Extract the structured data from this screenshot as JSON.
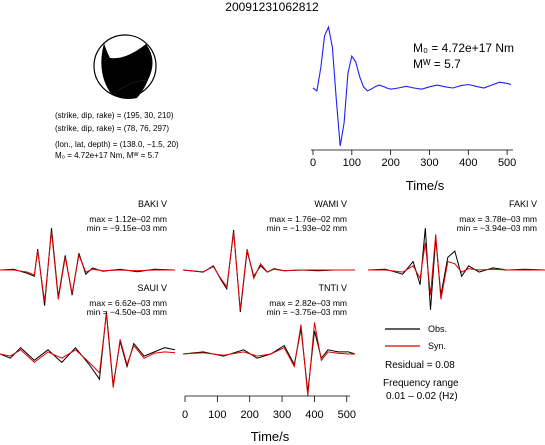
{
  "title": "20091231062812",
  "moment_tensor": {
    "line1": "(strike, dip, rake) = (195, 30, 210)",
    "line2": "(strike, dip, rake) = (78, 76, 297)",
    "line3": "(lon., lat, depth) = (138.0, −1.5, 20)",
    "line4": "M₀ = 4.72e+17 Nm, Mᵂ = 5.7",
    "stf_m0_label": "M₀ = 4.72e+17 Nm",
    "stf_mw_label": "Mᵂ = 5.7"
  },
  "legend": {
    "obs_label": "Obs.",
    "syn_label": "Syn.",
    "residual": "Residual = 0.08",
    "freq_title": "Frequency range",
    "freq_value": "0.01 – 0.02 (Hz)",
    "obs_color": "#000000",
    "syn_color": "#e00000"
  },
  "chart_data": [
    {
      "type": "line",
      "name": "source-time-function",
      "xlabel": "Time/s",
      "ylabel": "",
      "xlim": [
        0,
        510
      ],
      "xticks": [
        0,
        100,
        200,
        300,
        400,
        500
      ],
      "color": "#1f1fff",
      "x": [
        0,
        10,
        20,
        30,
        40,
        50,
        60,
        70,
        80,
        90,
        100,
        110,
        120,
        130,
        140,
        150,
        160,
        170,
        180,
        190,
        200,
        220,
        240,
        260,
        280,
        300,
        320,
        340,
        360,
        380,
        400,
        420,
        440,
        460,
        480,
        500,
        510
      ],
      "y": [
        0.0,
        -0.05,
        0.35,
        0.9,
        1.05,
        0.7,
        -0.2,
        -1.0,
        -0.6,
        0.25,
        0.55,
        0.45,
        0.2,
        0.02,
        -0.05,
        -0.02,
        0.02,
        0.05,
        0.03,
        0.0,
        -0.02,
        0.0,
        0.03,
        0.0,
        -0.02,
        0.02,
        0.05,
        0.02,
        0.0,
        0.04,
        0.06,
        0.03,
        0.0,
        0.05,
        0.1,
        0.08,
        0.06
      ]
    },
    {
      "type": "line",
      "name": "waveform-fits",
      "xlabel": "Time/s",
      "xlim": [
        0,
        510
      ],
      "xticks": [
        0,
        100,
        200,
        300,
        400,
        500
      ],
      "stations": [
        {
          "label": "BAKI V",
          "max": "max = 1.12e–02 mm",
          "min": "min = −9.15e–03 mm",
          "x": [
            0,
            40,
            80,
            100,
            110,
            130,
            150,
            170,
            190,
            210,
            230,
            250,
            270,
            300,
            350,
            400,
            450,
            510
          ],
          "obs": [
            0.0,
            0.02,
            -0.08,
            -0.15,
            0.5,
            -0.85,
            1.0,
            -0.65,
            0.35,
            -0.6,
            0.4,
            -0.1,
            0.05,
            -0.03,
            0.02,
            -0.04,
            0.02,
            0.0
          ],
          "syn": [
            0.0,
            0.0,
            -0.05,
            -0.12,
            0.45,
            -0.75,
            0.92,
            -0.7,
            0.3,
            -0.55,
            0.35,
            -0.05,
            0.02,
            -0.02,
            0.0,
            -0.02,
            0.0,
            0.0
          ]
        },
        {
          "label": "WAMI V",
          "max": "max = 1.76e–02 mm",
          "min": "min = −1.93e–02 mm",
          "x": [
            0,
            60,
            90,
            110,
            130,
            150,
            170,
            190,
            210,
            230,
            250,
            270,
            300,
            350,
            400,
            450,
            510
          ],
          "obs": [
            0.0,
            -0.05,
            0.1,
            -0.2,
            -0.45,
            0.95,
            -1.0,
            0.45,
            -0.15,
            0.1,
            -0.05,
            0.03,
            -0.02,
            0.0,
            -0.02,
            0.0,
            0.0
          ],
          "syn": [
            0.0,
            -0.04,
            0.08,
            -0.18,
            -0.4,
            0.9,
            -0.95,
            0.5,
            -0.2,
            0.15,
            -0.05,
            0.02,
            -0.02,
            0.0,
            0.0,
            0.0,
            0.0
          ]
        },
        {
          "label": "FAKI V",
          "max": "max = 3.78e–03 mm",
          "min": "min = −3.94e–03 mm",
          "x": [
            0,
            50,
            100,
            130,
            150,
            165,
            180,
            195,
            210,
            230,
            250,
            270,
            290,
            320,
            360,
            400,
            450,
            510
          ],
          "obs": [
            0.0,
            0.02,
            -0.1,
            0.2,
            -0.35,
            1.0,
            -0.95,
            0.75,
            -0.6,
            0.3,
            0.45,
            -0.15,
            0.1,
            -0.05,
            0.05,
            0.0,
            0.02,
            0.0
          ],
          "syn": [
            0.0,
            0.0,
            -0.05,
            0.1,
            -0.2,
            0.65,
            -0.6,
            0.85,
            -0.7,
            0.2,
            0.15,
            -0.05,
            0.03,
            0.0,
            0.02,
            0.0,
            0.0,
            0.0
          ]
        },
        {
          "label": "SAUI V",
          "max": "max = 6.62e–03 mm",
          "min": "min = −4.50e–03 mm",
          "x": [
            0,
            30,
            60,
            100,
            140,
            180,
            220,
            260,
            290,
            310,
            330,
            350,
            370,
            390,
            420,
            450,
            480,
            510
          ],
          "obs": [
            0.0,
            -0.1,
            0.15,
            -0.15,
            0.1,
            -0.2,
            0.15,
            -0.25,
            -0.6,
            1.0,
            -0.75,
            0.3,
            -0.3,
            0.25,
            -0.05,
            0.05,
            0.15,
            0.1
          ],
          "syn": [
            0.0,
            -0.05,
            0.1,
            -0.2,
            0.05,
            -0.1,
            0.1,
            -0.2,
            -0.45,
            0.95,
            -0.8,
            0.35,
            -0.25,
            0.2,
            -0.1,
            0.02,
            0.05,
            0.03
          ]
        },
        {
          "label": "TNTI V",
          "max": "max = 2.82e–03 mm",
          "min": "min = −3.75e–03 mm",
          "x": [
            0,
            60,
            120,
            180,
            220,
            260,
            300,
            330,
            350,
            370,
            390,
            410,
            430,
            460,
            490,
            510
          ],
          "obs": [
            0.0,
            0.05,
            -0.05,
            0.1,
            -0.1,
            0.0,
            0.2,
            -0.25,
            0.6,
            -0.9,
            0.55,
            -0.1,
            0.1,
            0.05,
            0.05,
            0.0
          ],
          "syn": [
            0.0,
            0.03,
            -0.03,
            0.05,
            -0.05,
            0.0,
            0.15,
            -0.3,
            0.7,
            -1.0,
            0.75,
            -0.15,
            0.05,
            0.02,
            0.0,
            0.0
          ]
        }
      ]
    }
  ]
}
